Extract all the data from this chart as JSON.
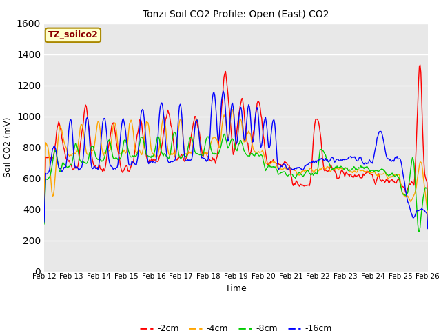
{
  "title": "Tonzi Soil CO2 Profile: Open (East) CO2",
  "xlabel": "Time",
  "ylabel": "Soil CO2 (mV)",
  "ylim": [
    0,
    1600
  ],
  "yticks": [
    0,
    200,
    400,
    600,
    800,
    1000,
    1200,
    1400,
    1600
  ],
  "xtick_labels": [
    "Feb 12",
    "Feb 13",
    "Feb 14",
    "Feb 15",
    "Feb 16",
    "Feb 17",
    "Feb 18",
    "Feb 19",
    "Feb 20",
    "Feb 21",
    "Feb 22",
    "Feb 23",
    "Feb 24",
    "Feb 25",
    "Feb 26"
  ],
  "series_colors": [
    "#ff0000",
    "#ffa500",
    "#00cc00",
    "#0000ff"
  ],
  "series_labels": [
    "-2cm",
    "-4cm",
    "-8cm",
    "-16cm"
  ],
  "plot_bg_color": "#e8e8e8",
  "fig_bg_color": "#ffffff",
  "annotation_text": "TZ_soilco2",
  "annotation_color": "#8b0000",
  "annotation_bg": "#ffffcc",
  "annotation_border": "#aa8800",
  "n_points": 500
}
